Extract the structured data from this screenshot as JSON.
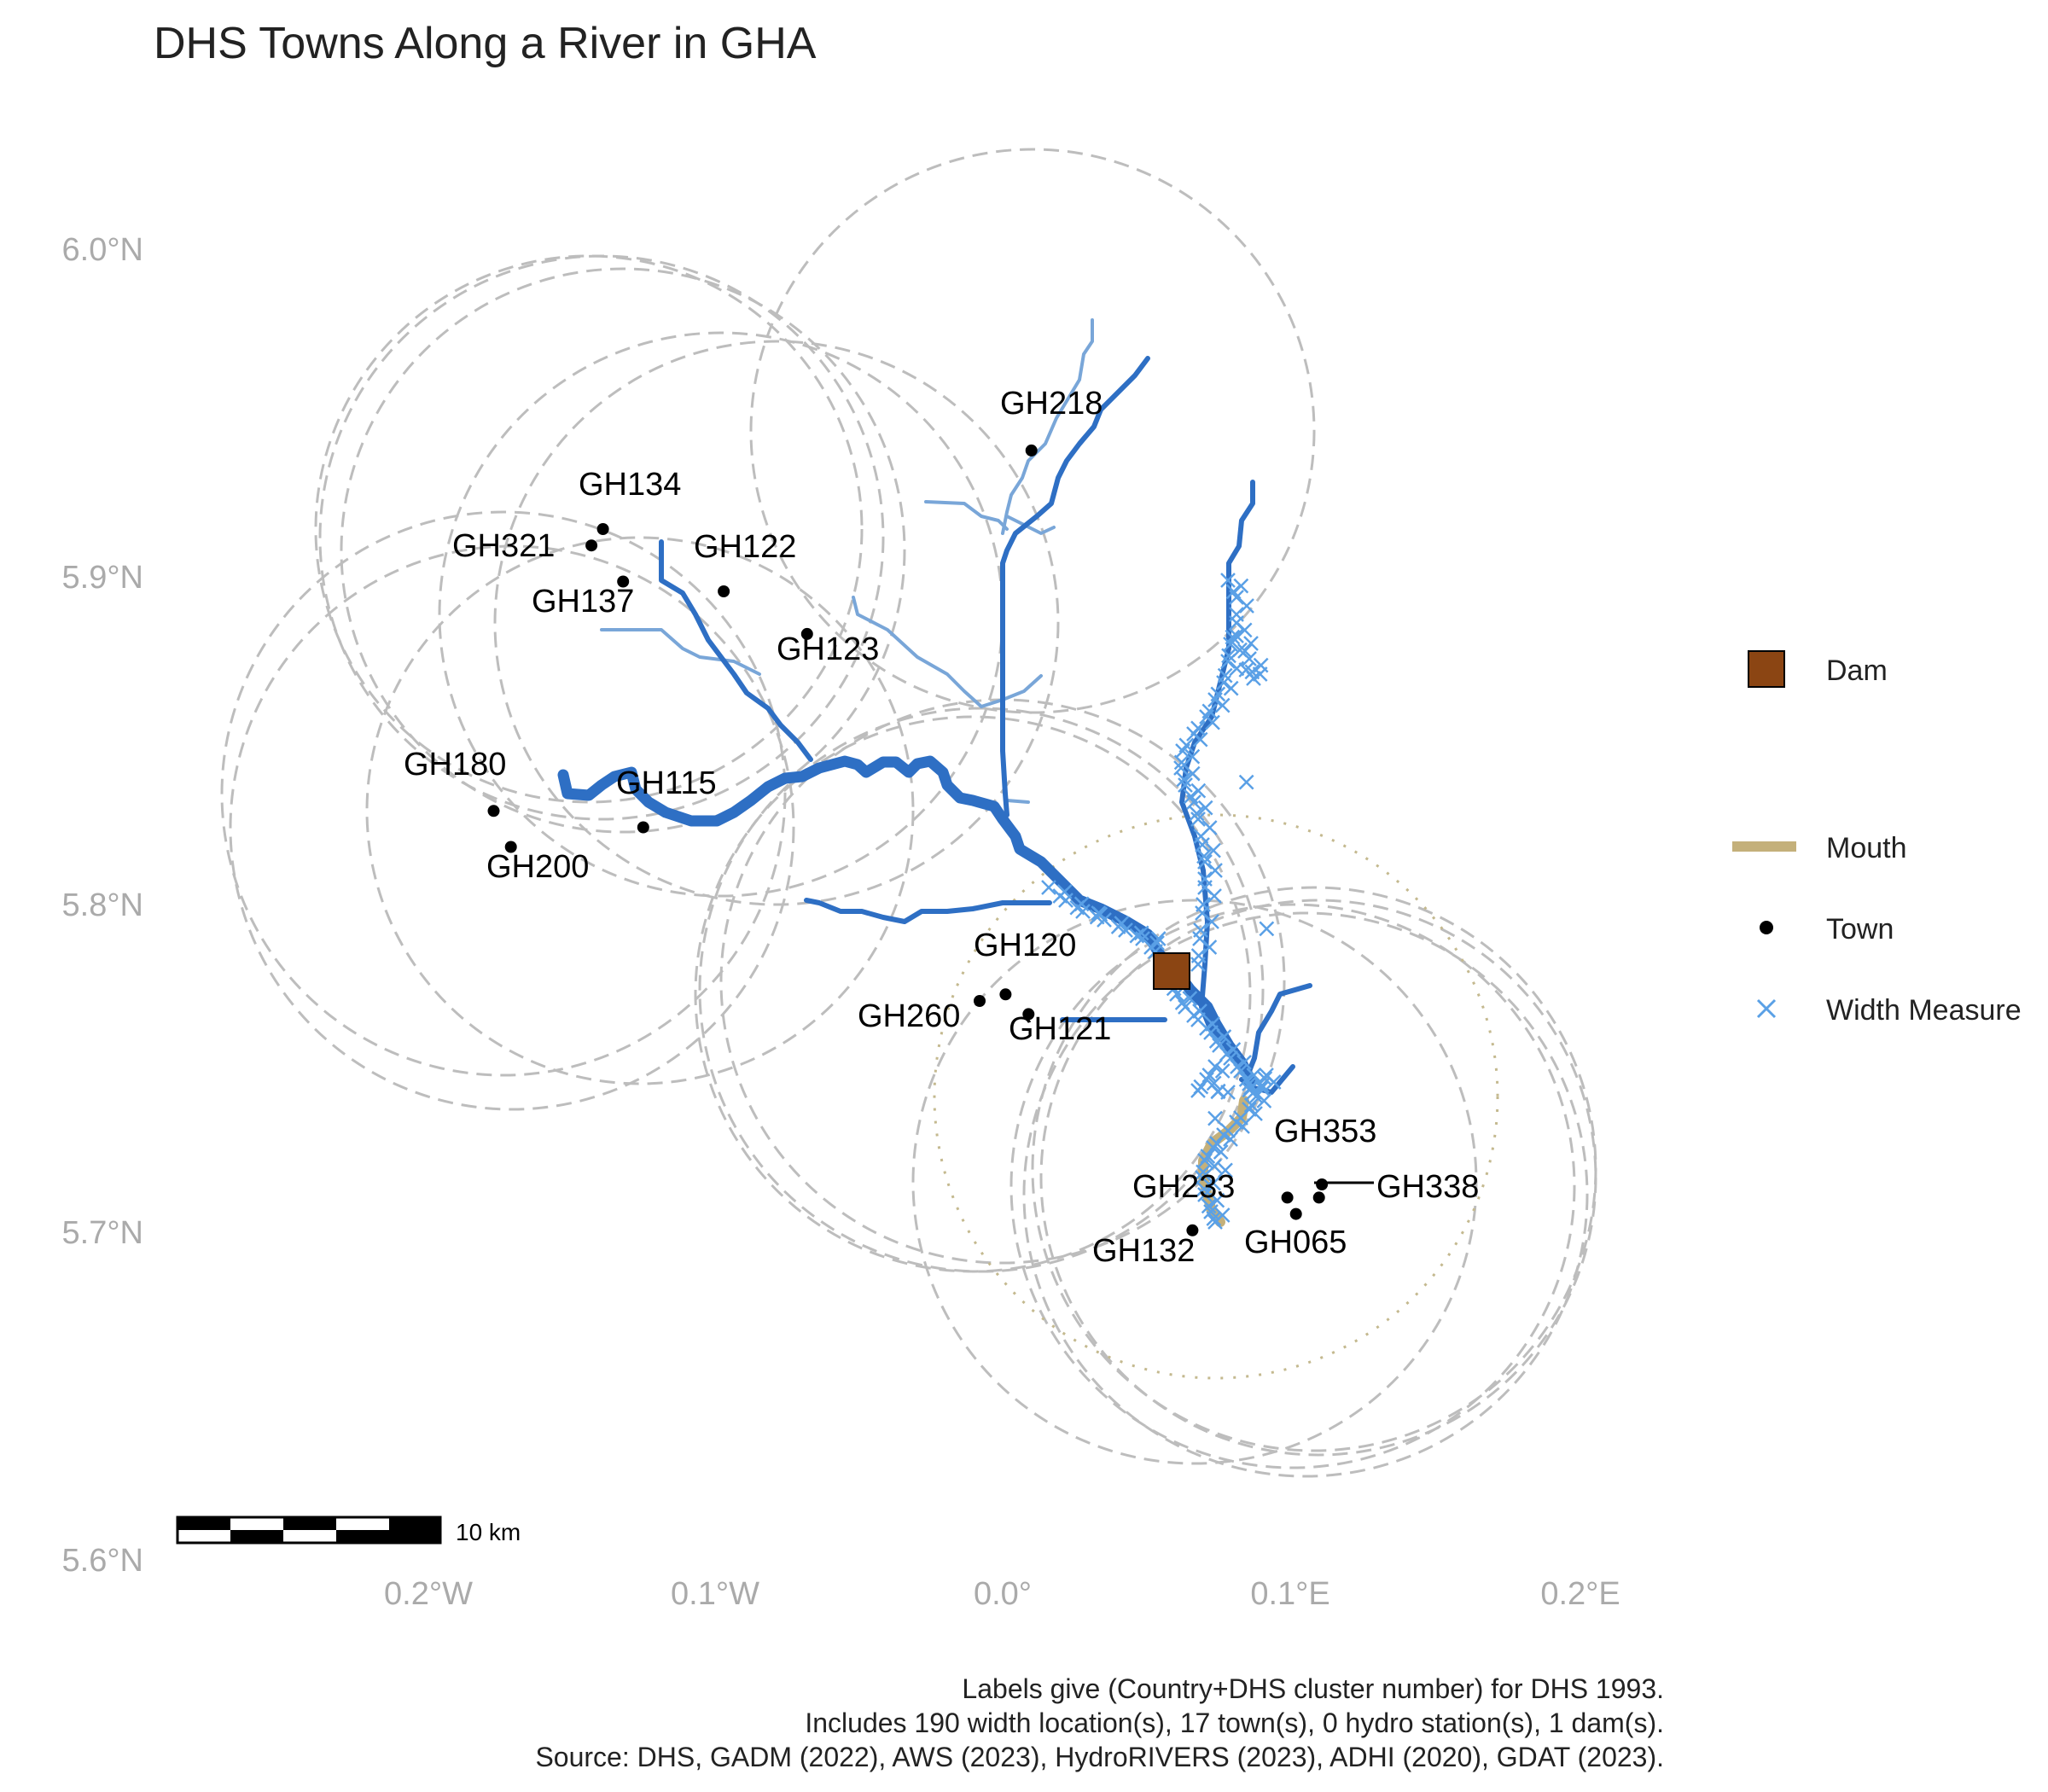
{
  "title": "DHS Towns Along a River in GHA",
  "axes": {
    "y_ticks": [
      {
        "value": 6.0,
        "label": "6.0°N"
      },
      {
        "value": 5.9,
        "label": "5.9°N"
      },
      {
        "value": 5.8,
        "label": "5.8°N"
      },
      {
        "value": 5.7,
        "label": "5.7°N"
      },
      {
        "value": 5.6,
        "label": "5.6°N"
      }
    ],
    "x_ticks": [
      {
        "value": -0.2,
        "label": "0.2°W"
      },
      {
        "value": -0.1,
        "label": "0.1°W"
      },
      {
        "value": 0.0,
        "label": "0.0°"
      },
      {
        "value": 0.1,
        "label": "0.1°E"
      },
      {
        "value": 0.2,
        "label": "0.2°E"
      }
    ],
    "xlim": [
      -0.2946,
      0.2133
    ],
    "ylim": [
      5.5966,
      6.0212
    ]
  },
  "towns": [
    {
      "id": "GH218",
      "lon": 0.01,
      "lat": 5.943,
      "label": "GH218"
    },
    {
      "id": "GH134",
      "lon": -0.139,
      "lat": 5.919,
      "label": "GH134"
    },
    {
      "id": "GH321",
      "lon": -0.143,
      "lat": 5.914,
      "label": "GH321"
    },
    {
      "id": "GH137",
      "lon": -0.132,
      "lat": 5.903,
      "label": "GH137"
    },
    {
      "id": "GH122",
      "lon": -0.097,
      "lat": 5.9,
      "label": "GH122"
    },
    {
      "id": "GH123",
      "lon": -0.068,
      "lat": 5.887,
      "label": "GH123"
    },
    {
      "id": "GH180",
      "lon": -0.177,
      "lat": 5.833,
      "label": "GH180"
    },
    {
      "id": "GH200",
      "lon": -0.171,
      "lat": 5.822,
      "label": "GH200"
    },
    {
      "id": "GH115",
      "lon": -0.125,
      "lat": 5.828,
      "label": "GH115"
    },
    {
      "id": "GH120",
      "lon": 0.001,
      "lat": 5.777,
      "label": "GH120"
    },
    {
      "id": "GH260",
      "lon": -0.008,
      "lat": 5.775,
      "label": "GH260"
    },
    {
      "id": "GH121",
      "lon": 0.009,
      "lat": 5.771,
      "label": "GH121"
    },
    {
      "id": "GH353",
      "lon": 0.111,
      "lat": 5.719,
      "label": "GH353"
    },
    {
      "id": "GH338",
      "lon": 0.11,
      "lat": 5.715,
      "label": "GH338"
    },
    {
      "id": "GH233",
      "lon": 0.099,
      "lat": 5.715,
      "label": "GH233"
    },
    {
      "id": "GH065",
      "lon": 0.102,
      "lat": 5.71,
      "label": "GH065"
    },
    {
      "id": "GH132",
      "lon": 0.066,
      "lat": 5.705,
      "label": "GH132"
    }
  ],
  "dam": {
    "lon": 0.059,
    "lat": 5.779,
    "color": "#8B4513"
  },
  "colors": {
    "river_main": "#2e6fc4",
    "river_light": "#79a6d8",
    "width_measure": "#5aa0e6",
    "mouth": "#c4b07a",
    "buffer": "#bdbdbd",
    "mouth_buffer": "#c4b98f",
    "town": "#000000"
  },
  "legend": {
    "dam": "Dam",
    "mouth": "Mouth",
    "town": "Town",
    "width_measure": "Width Measure"
  },
  "scale_bar": {
    "label": "10 km"
  },
  "caption": {
    "line1": "Labels give (Country+DHS cluster number) for DHS 1993.",
    "line2": "Includes 190 width location(s), 17 town(s), 0 hydro station(s), 1 dam(s).",
    "line3": "Source: DHS, GADM (2022), AWS (2023), HydroRIVERS (2023), ADHI (2020), GDAT (2023)."
  }
}
